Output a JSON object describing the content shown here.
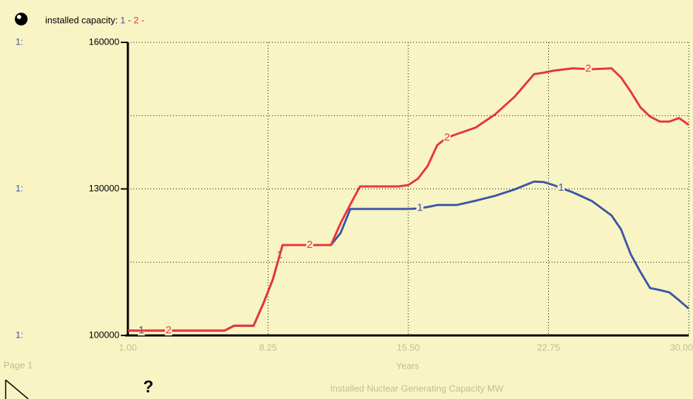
{
  "chart_data": {
    "type": "line",
    "legend_title": "installed capacity:",
    "legend_separator": "-",
    "scale_label": "1:",
    "x_label": "Years",
    "y_label": "Installed Nuclear Generating Capacity MW",
    "page_label": "Page 1",
    "help_icon": "?",
    "x": [
      1,
      2,
      3,
      4,
      5,
      6,
      6.5,
      7.5,
      8,
      8.5,
      9,
      9.5,
      10,
      11,
      11.5,
      12,
      12.5,
      13,
      14,
      15,
      15.5,
      16,
      16.5,
      17,
      17.5,
      18,
      19,
      20,
      21,
      22,
      22.5,
      23,
      24,
      25,
      26,
      26.5,
      27,
      27.5,
      28,
      28.5,
      29,
      29.5,
      30
    ],
    "series": [
      {
        "name": "1",
        "color": "#3d56a6",
        "values": [
          101000,
          101000,
          101000,
          101000,
          101000,
          101000,
          102000,
          102000,
          106500,
          111500,
          118500,
          118500,
          118500,
          118500,
          118500,
          121000,
          125900,
          125900,
          125900,
          125900,
          125900,
          126000,
          126300,
          126700,
          126700,
          126700,
          127600,
          128600,
          129900,
          131500,
          131400,
          130800,
          129300,
          127500,
          124600,
          121700,
          116600,
          113000,
          109700,
          109300,
          108800,
          107200,
          105500
        ]
      },
      {
        "name": "2",
        "color": "#e8343c",
        "values": [
          101000,
          101000,
          101000,
          101000,
          101000,
          101000,
          102000,
          102000,
          106500,
          111500,
          118500,
          118500,
          118500,
          118500,
          118500,
          123000,
          126800,
          130500,
          130500,
          130500,
          130800,
          132100,
          134700,
          139000,
          140500,
          141200,
          142600,
          145300,
          148900,
          153500,
          153800,
          154200,
          154700,
          154500,
          154700,
          152800,
          149900,
          146700,
          144800,
          143800,
          143800,
          144500,
          143100
        ]
      }
    ],
    "xlim": [
      1,
      30
    ],
    "xticks": [
      {
        "value": 1,
        "label": "1.00"
      },
      {
        "value": 8.25,
        "label": "8.25"
      },
      {
        "value": 15.5,
        "label": "15.50"
      },
      {
        "value": 22.75,
        "label": "22.75"
      },
      {
        "value": 30,
        "label": "30.00"
      }
    ],
    "ylim": [
      100000,
      160000
    ],
    "yticks": [
      100000,
      130000,
      160000
    ],
    "minor_yticks": [
      115000,
      145000
    ],
    "grid": true
  }
}
